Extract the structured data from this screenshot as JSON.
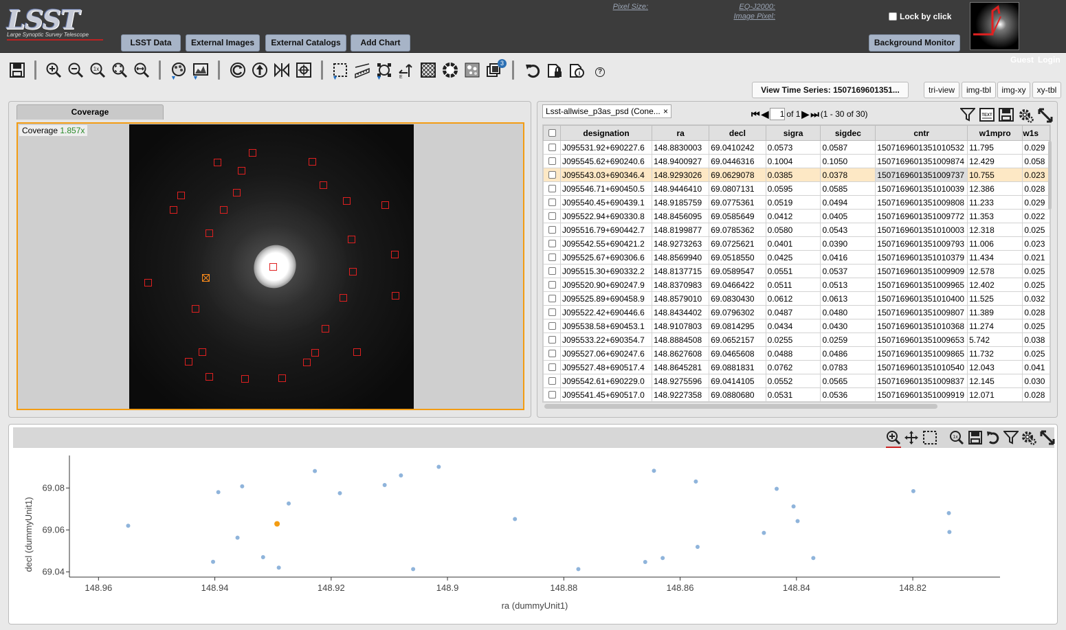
{
  "header": {
    "logo_text": "LSST",
    "logo_subtitle": "Large Synoptic Survey Telescope",
    "nav_buttons": [
      "LSST Data",
      "External Images",
      "External Catalogs",
      "Add Chart"
    ],
    "pixel_size_label": "Pixel Size:",
    "eq_label": "EQ-J2000:",
    "image_pixel_label": "Image Pixel:",
    "lock_label": "Lock by click",
    "background_monitor": "Background Monitor",
    "guest": "Guest",
    "login": "Login"
  },
  "toolbar": {
    "icons": [
      "save-icon",
      "zoom-in-icon",
      "zoom-out-icon",
      "zoom-1x-icon",
      "zoom-fit-icon",
      "zoom-fill-icon",
      "color-stretch-icon",
      "stretch-icon",
      "rotate-icon",
      "north-up-icon",
      "flip-icon",
      "recenter-icon",
      "select-area-icon",
      "distance-ruler-icon",
      "marker-icon",
      "northarrow-icon",
      "grid-icon",
      "mask-icon",
      "overlay-icon",
      "layers-icon",
      "undo-icon",
      "lock-icon",
      "info-icon",
      "help-icon"
    ],
    "help_text": "?",
    "layers_badge": "3"
  },
  "view_buttons": {
    "time_series": "View Time Series: 1507169601351...",
    "tri_view": "tri-view",
    "img_tbl": "img-tbl",
    "img_xy": "img-xy",
    "xy_tbl": "xy-tbl"
  },
  "coverage": {
    "tab_label": "Coverage",
    "label": "Coverage",
    "zoom": "1.857x"
  },
  "table": {
    "tab_label": "Lsst-allwise_p3as_psd (Cone...",
    "close": "×",
    "page_input": "1",
    "page_of": "of 1",
    "range": "(1 - 30 of 30)",
    "columns": [
      "designation",
      "ra",
      "decl",
      "sigra",
      "sigdec",
      "cntr",
      "w1mpro",
      "w1s"
    ],
    "highlighted_row": 2,
    "rows": [
      [
        "J095531.92+690227.6",
        "148.8830003",
        "69.0410242",
        "0.0573",
        "0.0587",
        "1507169601351010532",
        "11.795",
        "0.029"
      ],
      [
        "J095545.62+690240.6",
        "148.9400927",
        "69.0446316",
        "0.1004",
        "0.1050",
        "1507169601351009874",
        "12.429",
        "0.058"
      ],
      [
        "J095543.03+690346.4",
        "148.9293026",
        "69.0629078",
        "0.0385",
        "0.0378",
        "1507169601351009737",
        "10.755",
        "0.023"
      ],
      [
        "J095546.71+690450.5",
        "148.9446410",
        "69.0807131",
        "0.0595",
        "0.0585",
        "1507169601351010039",
        "12.386",
        "0.028"
      ],
      [
        "J095540.45+690439.1",
        "148.9185759",
        "69.0775361",
        "0.0519",
        "0.0494",
        "1507169601351009808",
        "11.233",
        "0.029"
      ],
      [
        "J095522.94+690330.8",
        "148.8456095",
        "69.0585649",
        "0.0412",
        "0.0405",
        "1507169601351009772",
        "11.353",
        "0.022"
      ],
      [
        "J095516.79+690442.7",
        "148.8199877",
        "69.0785362",
        "0.0580",
        "0.0543",
        "1507169601351010003",
        "12.318",
        "0.025"
      ],
      [
        "J095542.55+690421.2",
        "148.9273263",
        "69.0725621",
        "0.0401",
        "0.0390",
        "1507169601351009793",
        "11.006",
        "0.023"
      ],
      [
        "J095525.67+690306.6",
        "148.8569940",
        "69.0518550",
        "0.0425",
        "0.0416",
        "1507169601351010379",
        "11.434",
        "0.021"
      ],
      [
        "J095515.30+690332.2",
        "148.8137715",
        "69.0589547",
        "0.0551",
        "0.0537",
        "1507169601351009909",
        "12.578",
        "0.025"
      ],
      [
        "J095520.90+690247.9",
        "148.8370983",
        "69.0466422",
        "0.0511",
        "0.0513",
        "1507169601351009965",
        "12.402",
        "0.025"
      ],
      [
        "J095525.89+690458.9",
        "148.8579010",
        "69.0830430",
        "0.0612",
        "0.0613",
        "1507169601351010400",
        "11.525",
        "0.032"
      ],
      [
        "J095522.42+690446.6",
        "148.8434402",
        "69.0796302",
        "0.0487",
        "0.0480",
        "1507169601351009807",
        "11.389",
        "0.028"
      ],
      [
        "J095538.58+690453.1",
        "148.9107803",
        "69.0814295",
        "0.0434",
        "0.0430",
        "1507169601351010368",
        "11.274",
        "0.025"
      ],
      [
        "J095533.22+690354.7",
        "148.8884508",
        "69.0652157",
        "0.0255",
        "0.0259",
        "1507169601351009653",
        "5.742",
        "0.038"
      ],
      [
        "J095527.06+690247.6",
        "148.8627608",
        "69.0465608",
        "0.0488",
        "0.0486",
        "1507169601351009865",
        "11.732",
        "0.025"
      ],
      [
        "J095527.48+690517.4",
        "148.8645281",
        "69.0881831",
        "0.0762",
        "0.0783",
        "1507169601351010540",
        "12.043",
        "0.041"
      ],
      [
        "J095542.61+690229.0",
        "148.9275596",
        "69.0414105",
        "0.0552",
        "0.0565",
        "1507169601351009837",
        "12.145",
        "0.030"
      ],
      [
        "J095541.45+690517.0",
        "148.9227358",
        "69.0880680",
        "0.0531",
        "0.0536",
        "1507169601351009919",
        "12.071",
        "0.028"
      ]
    ]
  },
  "chart_data": {
    "type": "scatter",
    "xlabel": "ra (dummyUnit1)",
    "ylabel": "decl (dummyUnit1)",
    "xlim": [
      148.965,
      148.805
    ],
    "ylim": [
      69.0375,
      69.0955
    ],
    "x_ticks": [
      "148.96",
      "148.94",
      "148.92",
      "148.9",
      "148.88",
      "148.86",
      "148.84",
      "148.82"
    ],
    "x_tick_values": [
      148.96,
      148.94,
      148.92,
      148.9,
      148.88,
      148.86,
      148.84,
      148.82
    ],
    "y_ticks": [
      "69.04",
      "69.06",
      "69.08"
    ],
    "y_tick_values": [
      69.04,
      69.06,
      69.08
    ],
    "point_color": "#8fb4db",
    "selected_color": "#f39c12",
    "selected_index": 7,
    "points": [
      {
        "x": 148.9549,
        "y": 69.062
      },
      {
        "x": 148.9394,
        "y": 69.078
      },
      {
        "x": 148.9353,
        "y": 69.0808
      },
      {
        "x": 148.9403,
        "y": 69.0448
      },
      {
        "x": 148.9361,
        "y": 69.0563
      },
      {
        "x": 148.9317,
        "y": 69.047
      },
      {
        "x": 148.929,
        "y": 69.042
      },
      {
        "x": 148.9293,
        "y": 69.0629
      },
      {
        "x": 148.9273,
        "y": 69.0726
      },
      {
        "x": 148.9228,
        "y": 69.0881
      },
      {
        "x": 148.9185,
        "y": 69.0775
      },
      {
        "x": 148.9108,
        "y": 69.0814
      },
      {
        "x": 148.908,
        "y": 69.086
      },
      {
        "x": 148.9059,
        "y": 69.0413
      },
      {
        "x": 148.9015,
        "y": 69.0901
      },
      {
        "x": 148.8884,
        "y": 69.0652
      },
      {
        "x": 148.8775,
        "y": 69.0413
      },
      {
        "x": 148.866,
        "y": 69.0447
      },
      {
        "x": 148.8645,
        "y": 69.0882
      },
      {
        "x": 148.863,
        "y": 69.0466
      },
      {
        "x": 148.8573,
        "y": 69.0831
      },
      {
        "x": 148.857,
        "y": 69.0519
      },
      {
        "x": 148.8456,
        "y": 69.0586
      },
      {
        "x": 148.8434,
        "y": 69.0796
      },
      {
        "x": 148.8405,
        "y": 69.0712
      },
      {
        "x": 148.8398,
        "y": 69.0642
      },
      {
        "x": 148.8371,
        "y": 69.0466
      },
      {
        "x": 148.8199,
        "y": 69.0785
      },
      {
        "x": 148.8138,
        "y": 69.068
      },
      {
        "x": 148.8137,
        "y": 69.059
      }
    ]
  }
}
